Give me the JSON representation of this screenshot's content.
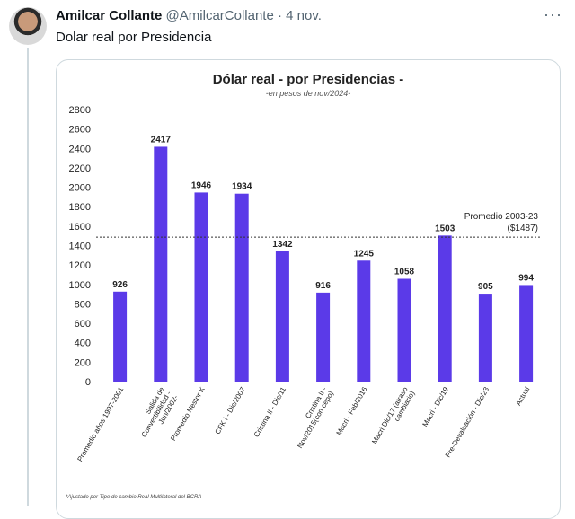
{
  "tweet": {
    "author_name": "Amilcar Collante",
    "author_handle": "@AmilcarCollante",
    "separator": "·",
    "date": "4 nov.",
    "text": "Dolar real por Presidencia",
    "more_icon": "more-horizontal-icon"
  },
  "chart_data": {
    "type": "bar",
    "title": "Dólar real - por Presidencias -",
    "subtitle": "-en pesos de nov/2024-",
    "bar_color": "#5b3ae8",
    "categories": [
      "Promedio años 1997-2001",
      "Salida de Convertibilidad - Jun/2002-",
      "Promedio Nestor K",
      "CFK I - Dic/2007",
      "Cristina II - Dic/11",
      "Cristina II - Nov/2015(con cepo)",
      "Macri - Feb/2016",
      "Macri Dic/17 (atraso cambiario)",
      "Macri - Dic/19",
      "Pre-Devaluación - Dic/23",
      "Actual"
    ],
    "values": [
      926,
      2417,
      1946,
      1934,
      1342,
      916,
      1245,
      1058,
      1503,
      905,
      994
    ],
    "ylim": [
      0,
      2800
    ],
    "yticks": [
      0,
      200,
      400,
      600,
      800,
      1000,
      1200,
      1400,
      1600,
      1800,
      2000,
      2200,
      2400,
      2600,
      2800
    ],
    "reference_line": {
      "value": 1487,
      "label_line1": "Promedio 2003-23",
      "label_line2": "($1487)"
    },
    "footnote": "*Ajustado por Tipo de cambio Real Multilateral del BCRA",
    "grid": false
  }
}
